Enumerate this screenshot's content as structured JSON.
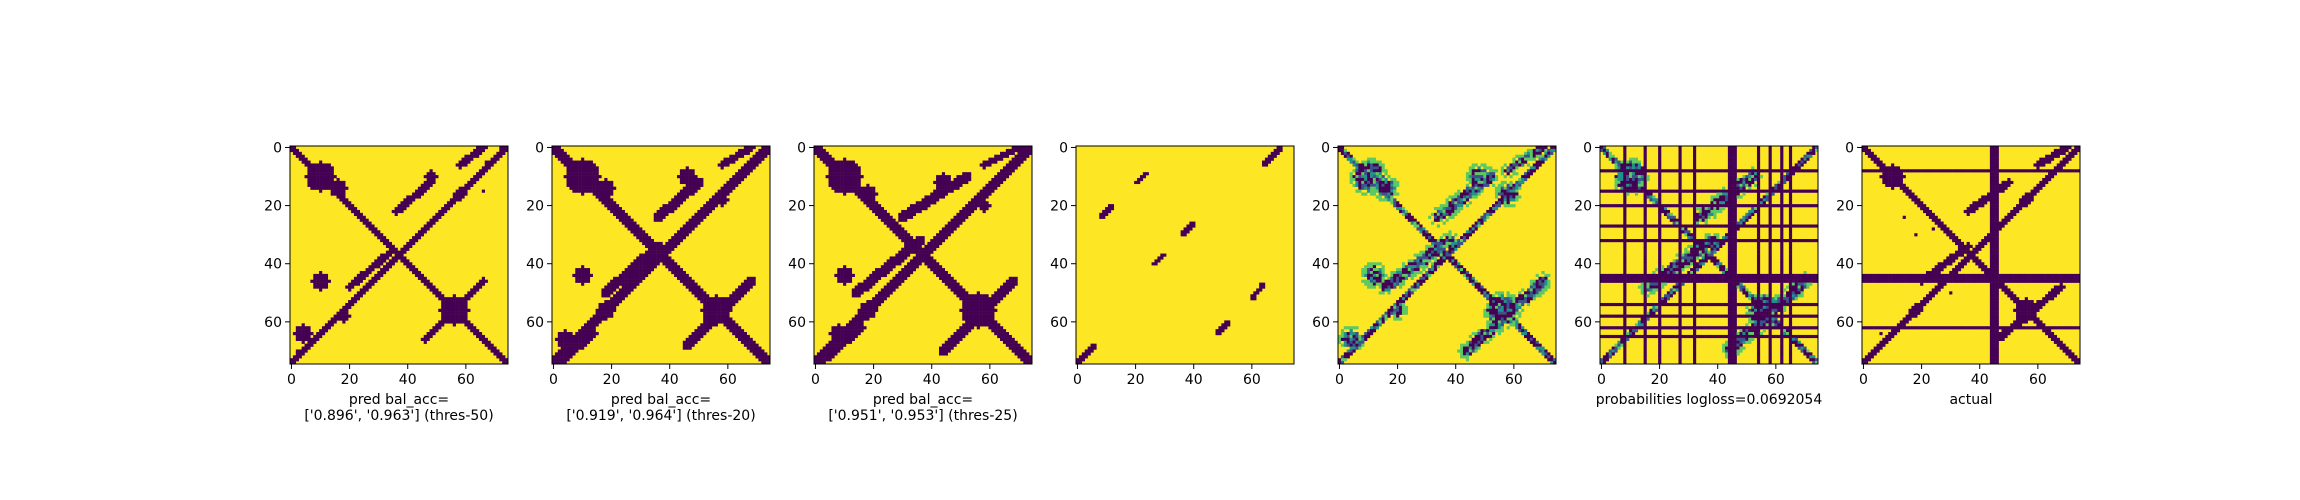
{
  "colors": {
    "background": "#fde725",
    "contact": "#440154",
    "mid_low": "#3b528b",
    "mid": "#21918c",
    "mid_high": "#5ec962",
    "axes": "#000000"
  },
  "chart_data": [
    {
      "type": "heatmap",
      "caption": [
        "pred bal_acc=",
        "['0.896', '0.963'] (thres-50)"
      ],
      "xticks": [
        "0",
        "20",
        "40",
        "60"
      ],
      "yticks": [
        "0",
        "20",
        "40",
        "60"
      ],
      "xlim": [
        0,
        75
      ],
      "ylim": [
        75,
        0
      ],
      "main_diagonal_width": 3,
      "blobs": [
        {
          "x": 10,
          "y": 10,
          "r": 5
        },
        {
          "x": 16,
          "y": 14,
          "r": 3
        },
        {
          "x": 48,
          "y": 10,
          "r": 2
        },
        {
          "x": 58,
          "y": 16,
          "r": 2
        },
        {
          "x": 10,
          "y": 46,
          "r": 3
        },
        {
          "x": 18,
          "y": 58,
          "r": 2
        },
        {
          "x": 56,
          "y": 56,
          "r": 5
        },
        {
          "x": 4,
          "y": 64,
          "r": 3
        }
      ],
      "bands": [
        {
          "x0": 20,
          "y0": 48,
          "x1": 34,
          "y1": 36,
          "w": 2
        },
        {
          "x0": 36,
          "y0": 22,
          "x1": 48,
          "y1": 12,
          "w": 2
        },
        {
          "x0": 58,
          "y0": 6,
          "x1": 66,
          "y1": 0,
          "w": 2
        },
        {
          "x0": 46,
          "y0": 66,
          "x1": 66,
          "y1": 46,
          "w": 2
        }
      ],
      "scatter": [
        [
          72,
          0
        ],
        [
          67,
          5
        ],
        [
          66,
          15
        ],
        [
          2,
          70
        ]
      ]
    },
    {
      "type": "heatmap",
      "caption": [
        "pred bal_acc=",
        "['0.919', '0.964'] (thres-20)"
      ],
      "xticks": [
        "0",
        "20",
        "40",
        "60"
      ],
      "yticks": [
        "0",
        "20",
        "40",
        "60"
      ],
      "xlim": [
        0,
        75
      ],
      "ylim": [
        75,
        0
      ],
      "main_diagonal_width": 4,
      "blobs": [
        {
          "x": 10,
          "y": 10,
          "r": 6
        },
        {
          "x": 18,
          "y": 14,
          "r": 3
        },
        {
          "x": 46,
          "y": 10,
          "r": 3
        },
        {
          "x": 58,
          "y": 18,
          "r": 2
        },
        {
          "x": 10,
          "y": 44,
          "r": 3
        },
        {
          "x": 18,
          "y": 56,
          "r": 3
        },
        {
          "x": 56,
          "y": 56,
          "r": 5
        },
        {
          "x": 4,
          "y": 66,
          "r": 3
        }
      ],
      "bands": [
        {
          "x0": 18,
          "y0": 50,
          "x1": 36,
          "y1": 34,
          "w": 3
        },
        {
          "x0": 36,
          "y0": 24,
          "x1": 50,
          "y1": 12,
          "w": 3
        },
        {
          "x0": 58,
          "y0": 6,
          "x1": 68,
          "y1": 0,
          "w": 2
        },
        {
          "x0": 46,
          "y0": 68,
          "x1": 68,
          "y1": 46,
          "w": 3
        },
        {
          "x0": 2,
          "y0": 74,
          "x1": 14,
          "y1": 64,
          "w": 2
        }
      ],
      "scatter": []
    },
    {
      "type": "heatmap",
      "caption": [
        "pred bal_acc=",
        "['0.951', '0.953'] (thres-25)"
      ],
      "xticks": [
        "0",
        "20",
        "40",
        "60"
      ],
      "yticks": [
        "0",
        "20",
        "40",
        "60"
      ],
      "xlim": [
        0,
        75
      ],
      "ylim": [
        75,
        0
      ],
      "main_diagonal_width": 4,
      "blobs": [
        {
          "x": 10,
          "y": 10,
          "r": 6
        },
        {
          "x": 18,
          "y": 16,
          "r": 3
        },
        {
          "x": 44,
          "y": 12,
          "r": 3
        },
        {
          "x": 58,
          "y": 20,
          "r": 2
        },
        {
          "x": 10,
          "y": 44,
          "r": 3
        },
        {
          "x": 18,
          "y": 56,
          "r": 3
        },
        {
          "x": 56,
          "y": 56,
          "r": 6
        },
        {
          "x": 8,
          "y": 64,
          "r": 3
        }
      ],
      "bands": [
        {
          "x0": 14,
          "y0": 50,
          "x1": 36,
          "y1": 32,
          "w": 3
        },
        {
          "x0": 30,
          "y0": 24,
          "x1": 52,
          "y1": 10,
          "w": 3
        },
        {
          "x0": 58,
          "y0": 6,
          "x1": 70,
          "y1": 0,
          "w": 2
        },
        {
          "x0": 44,
          "y0": 70,
          "x1": 68,
          "y1": 46,
          "w": 3
        },
        {
          "x0": 2,
          "y0": 74,
          "x1": 16,
          "y1": 62,
          "w": 2
        }
      ],
      "scatter": []
    },
    {
      "type": "heatmap",
      "caption": [],
      "xticks": [
        "0",
        "20",
        "40",
        "60"
      ],
      "yticks": [
        "0",
        "20",
        "40",
        "60"
      ],
      "xlim": [
        0,
        75
      ],
      "ylim": [
        75,
        0
      ],
      "main_diagonal_width": 0,
      "blobs": [],
      "bands": [
        {
          "x0": 64,
          "y0": 6,
          "x1": 70,
          "y1": 0,
          "w": 1
        },
        {
          "x0": 20,
          "y0": 12,
          "x1": 24,
          "y1": 9,
          "w": 1
        },
        {
          "x0": 8,
          "y0": 24,
          "x1": 12,
          "y1": 20,
          "w": 1
        },
        {
          "x0": 26,
          "y0": 40,
          "x1": 30,
          "y1": 37,
          "w": 1
        },
        {
          "x0": 36,
          "y0": 30,
          "x1": 40,
          "y1": 26,
          "w": 1
        },
        {
          "x0": 60,
          "y0": 52,
          "x1": 64,
          "y1": 47,
          "w": 1
        },
        {
          "x0": 48,
          "y0": 64,
          "x1": 52,
          "y1": 60,
          "w": 1
        },
        {
          "x0": 0,
          "y0": 74,
          "x1": 6,
          "y1": 68,
          "w": 1
        }
      ],
      "scatter": []
    },
    {
      "type": "heatmap",
      "caption": [],
      "xticks": [
        "0",
        "20",
        "40",
        "60"
      ],
      "yticks": [
        "0",
        "20",
        "40",
        "60"
      ],
      "xlim": [
        0,
        75
      ],
      "ylim": [
        75,
        0
      ],
      "continuous": true,
      "main_diagonal_width": 3,
      "blobs": [
        {
          "x": 10,
          "y": 10,
          "r": 5
        },
        {
          "x": 16,
          "y": 14,
          "r": 3
        },
        {
          "x": 48,
          "y": 10,
          "r": 3
        },
        {
          "x": 58,
          "y": 16,
          "r": 3
        },
        {
          "x": 12,
          "y": 44,
          "r": 3
        },
        {
          "x": 20,
          "y": 56,
          "r": 2
        },
        {
          "x": 56,
          "y": 56,
          "r": 5
        },
        {
          "x": 4,
          "y": 66,
          "r": 3
        }
      ],
      "bands": [
        {
          "x0": 16,
          "y0": 48,
          "x1": 38,
          "y1": 32,
          "w": 3
        },
        {
          "x0": 34,
          "y0": 24,
          "x1": 52,
          "y1": 10,
          "w": 3
        },
        {
          "x0": 58,
          "y0": 8,
          "x1": 70,
          "y1": 0,
          "w": 2
        },
        {
          "x0": 44,
          "y0": 70,
          "x1": 70,
          "y1": 46,
          "w": 3
        }
      ],
      "scatter": []
    },
    {
      "type": "heatmap",
      "caption": [
        "probabilities logloss=0.0692054"
      ],
      "xticks": [
        "0",
        "20",
        "40",
        "60"
      ],
      "yticks": [
        "0",
        "20",
        "40",
        "60"
      ],
      "xlim": [
        0,
        75
      ],
      "ylim": [
        75,
        0
      ],
      "continuous": true,
      "main_diagonal_width": 3,
      "masked_rows": [
        8,
        15,
        20,
        27,
        32,
        44,
        45,
        46,
        54,
        58,
        62,
        65
      ],
      "masked_cols": [
        8,
        15,
        20,
        27,
        32,
        44,
        45,
        46,
        54,
        58,
        62,
        65
      ],
      "blobs": [
        {
          "x": 10,
          "y": 10,
          "r": 5
        },
        {
          "x": 56,
          "y": 56,
          "r": 5
        }
      ],
      "bands": [
        {
          "x0": 16,
          "y0": 48,
          "x1": 38,
          "y1": 32,
          "w": 3
        },
        {
          "x0": 34,
          "y0": 24,
          "x1": 52,
          "y1": 10,
          "w": 3
        },
        {
          "x0": 44,
          "y0": 70,
          "x1": 70,
          "y1": 46,
          "w": 3
        }
      ],
      "scatter": []
    },
    {
      "type": "heatmap",
      "caption": [
        "actual"
      ],
      "xticks": [
        "0",
        "20",
        "40",
        "60"
      ],
      "yticks": [
        "0",
        "20",
        "40",
        "60"
      ],
      "xlim": [
        0,
        75
      ],
      "ylim": [
        75,
        0
      ],
      "main_diagonal_width": 3,
      "masked_rows": [
        8,
        44,
        45,
        46,
        62
      ],
      "masked_cols": [
        44,
        45,
        46
      ],
      "blobs": [
        {
          "x": 10,
          "y": 10,
          "r": 4
        },
        {
          "x": 56,
          "y": 56,
          "r": 4
        },
        {
          "x": 56,
          "y": 18,
          "r": 2
        },
        {
          "x": 18,
          "y": 56,
          "r": 2
        }
      ],
      "bands": [
        {
          "x0": 20,
          "y0": 46,
          "x1": 36,
          "y1": 34,
          "w": 2
        },
        {
          "x0": 36,
          "y0": 22,
          "x1": 50,
          "y1": 12,
          "w": 2
        },
        {
          "x0": 60,
          "y0": 6,
          "x1": 70,
          "y1": 0,
          "w": 2
        },
        {
          "x0": 46,
          "y0": 66,
          "x1": 68,
          "y1": 48,
          "w": 2
        }
      ],
      "scatter": [
        [
          14,
          24
        ],
        [
          18,
          30
        ],
        [
          24,
          28
        ],
        [
          6,
          64
        ],
        [
          4,
          70
        ],
        [
          30,
          50
        ]
      ]
    }
  ]
}
